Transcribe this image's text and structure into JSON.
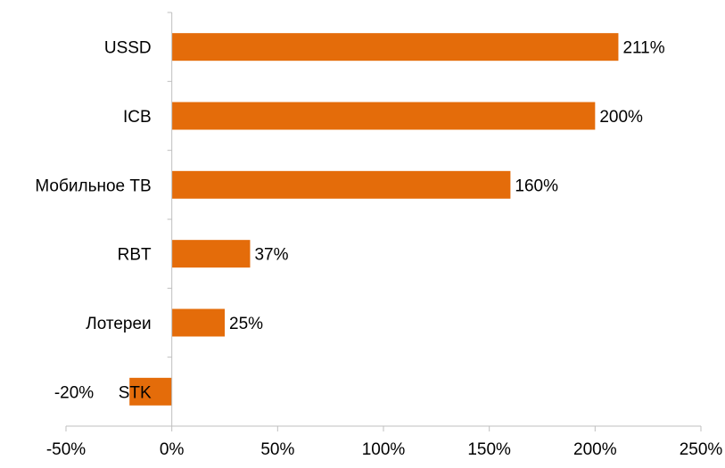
{
  "chart_data": {
    "type": "bar",
    "orientation": "horizontal",
    "categories": [
      "USSD",
      "ICB",
      "Мобильное ТВ",
      "RBT",
      "Лотереи",
      "STK"
    ],
    "values": [
      211,
      200,
      160,
      37,
      25,
      -20
    ],
    "value_labels": [
      "211%",
      "200%",
      "160%",
      "37%",
      "25%",
      "-20%"
    ],
    "xlim": [
      -50,
      250
    ],
    "x_ticks": [
      -50,
      0,
      50,
      100,
      150,
      200,
      250
    ],
    "x_tick_labels": [
      "-50%",
      "0%",
      "50%",
      "100%",
      "150%",
      "200%",
      "250%"
    ],
    "title": "",
    "xlabel": "",
    "ylabel": "",
    "grid": false,
    "legend": "none",
    "bar_color": "#e46c0a",
    "axis_color": "#bfbfbf"
  }
}
